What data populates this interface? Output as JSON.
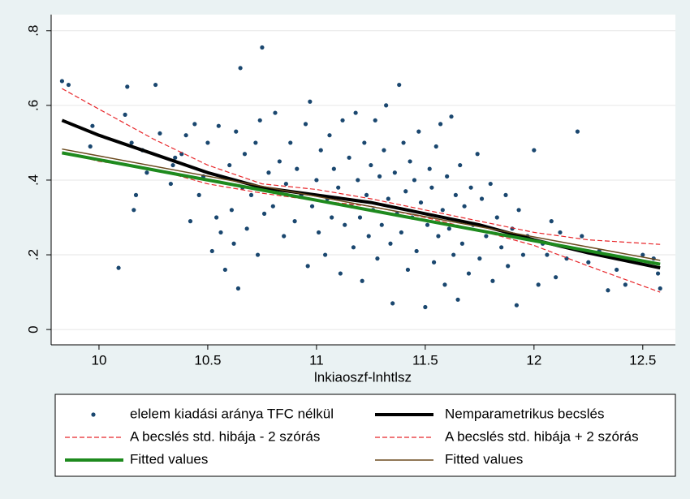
{
  "chart_data": {
    "type": "scatter",
    "x_label": "lnkiaoszf-lnhtlsz",
    "xlim": [
      9.78,
      12.65
    ],
    "xticks": [
      10,
      10.5,
      11,
      11.5,
      12,
      12.5
    ],
    "ylim": [
      -0.041,
      0.843
    ],
    "yticks": [
      0,
      {
        "value": 0.2,
        "label": ".2"
      },
      {
        "value": 0.4,
        "label": ".4"
      },
      {
        "value": 0.6,
        "label": ".6"
      },
      {
        "value": 0.8,
        "label": ".8"
      }
    ],
    "grid": true,
    "series": [
      {
        "name": "elelem kiadási aránya TFC nélkül",
        "kind": "scatter",
        "color": "#1a476f",
        "x": [
          9.83,
          9.86,
          9.96,
          9.97,
          10.09,
          10.12,
          10.13,
          10.15,
          10.16,
          10.17,
          10.26,
          10.22,
          10.2,
          10.28,
          10.33,
          10.34,
          10.35,
          10.38,
          10.4,
          10.42,
          10.44,
          10.46,
          10.48,
          10.5,
          10.52,
          10.54,
          10.55,
          10.56,
          10.58,
          10.6,
          10.61,
          10.62,
          10.63,
          10.64,
          10.65,
          10.66,
          10.67,
          10.68,
          10.7,
          10.72,
          10.73,
          10.74,
          10.75,
          10.76,
          10.78,
          10.8,
          10.81,
          10.83,
          10.85,
          10.86,
          10.88,
          10.9,
          10.91,
          10.93,
          10.95,
          10.96,
          10.97,
          10.98,
          11.0,
          11.01,
          11.02,
          11.04,
          11.05,
          11.06,
          11.07,
          11.08,
          11.1,
          11.11,
          11.12,
          11.13,
          11.15,
          11.16,
          11.17,
          11.18,
          11.19,
          11.2,
          11.21,
          11.22,
          11.23,
          11.24,
          11.25,
          11.26,
          11.27,
          11.28,
          11.29,
          11.3,
          11.31,
          11.32,
          11.33,
          11.34,
          11.35,
          11.36,
          11.37,
          11.38,
          11.39,
          11.4,
          11.41,
          11.42,
          11.43,
          11.44,
          11.45,
          11.46,
          11.47,
          11.48,
          11.5,
          11.51,
          11.52,
          11.53,
          11.54,
          11.55,
          11.56,
          11.57,
          11.58,
          11.59,
          11.6,
          11.61,
          11.62,
          11.63,
          11.64,
          11.65,
          11.66,
          11.67,
          11.68,
          11.7,
          11.71,
          11.72,
          11.74,
          11.75,
          11.76,
          11.78,
          11.8,
          11.81,
          11.83,
          11.85,
          11.87,
          11.88,
          11.9,
          11.92,
          11.93,
          11.95,
          11.97,
          12.0,
          12.02,
          12.04,
          12.06,
          12.08,
          12.1,
          12.12,
          12.15,
          12.2,
          12.22,
          12.25,
          12.3,
          12.34,
          12.38,
          12.42,
          12.5,
          12.55,
          12.58,
          12.57
        ],
        "values": [
          0.665,
          0.655,
          0.49,
          0.545,
          0.165,
          0.575,
          0.65,
          0.5,
          0.32,
          0.36,
          0.655,
          0.42,
          0.48,
          0.525,
          0.39,
          0.44,
          0.46,
          0.47,
          0.52,
          0.29,
          0.55,
          0.36,
          0.41,
          0.5,
          0.21,
          0.3,
          0.545,
          0.26,
          0.16,
          0.44,
          0.32,
          0.23,
          0.53,
          0.11,
          0.7,
          0.38,
          0.47,
          0.27,
          0.36,
          0.5,
          0.2,
          0.56,
          0.755,
          0.31,
          0.42,
          0.33,
          0.58,
          0.45,
          0.25,
          0.39,
          0.5,
          0.29,
          0.43,
          0.36,
          0.55,
          0.17,
          0.61,
          0.33,
          0.4,
          0.26,
          0.48,
          0.2,
          0.35,
          0.52,
          0.3,
          0.43,
          0.38,
          0.15,
          0.56,
          0.28,
          0.46,
          0.33,
          0.22,
          0.58,
          0.4,
          0.3,
          0.13,
          0.5,
          0.36,
          0.25,
          0.44,
          0.32,
          0.56,
          0.19,
          0.41,
          0.28,
          0.48,
          0.6,
          0.35,
          0.23,
          0.07,
          0.42,
          0.31,
          0.655,
          0.26,
          0.5,
          0.37,
          0.16,
          0.45,
          0.3,
          0.4,
          0.21,
          0.53,
          0.34,
          0.06,
          0.28,
          0.43,
          0.38,
          0.18,
          0.49,
          0.25,
          0.55,
          0.32,
          0.12,
          0.41,
          0.27,
          0.57,
          0.2,
          0.36,
          0.08,
          0.44,
          0.23,
          0.33,
          0.15,
          0.38,
          0.28,
          0.47,
          0.19,
          0.35,
          0.25,
          0.39,
          0.13,
          0.3,
          0.22,
          0.36,
          0.17,
          0.27,
          0.065,
          0.32,
          0.2,
          0.25,
          0.48,
          0.12,
          0.23,
          0.2,
          0.29,
          0.14,
          0.26,
          0.19,
          0.53,
          0.25,
          0.18,
          0.21,
          0.105,
          0.16,
          0.12,
          0.2,
          0.19,
          0.11,
          0.15
        ]
      },
      {
        "name": "Nemparametrikus becslés",
        "kind": "line",
        "style": "thick",
        "color": "#000000",
        "x": [
          9.83,
          10,
          10.25,
          10.5,
          10.75,
          11,
          11.25,
          11.5,
          11.75,
          12,
          12.25,
          12.58
        ],
        "values": [
          0.56,
          0.52,
          0.47,
          0.42,
          0.38,
          0.36,
          0.34,
          0.31,
          0.28,
          0.24,
          0.205,
          0.165
        ]
      },
      {
        "name": "A becslés std. hibája - 2 szórás",
        "kind": "line",
        "style": "dashed",
        "color": "#e8262a",
        "x": [
          9.83,
          10,
          10.25,
          10.5,
          10.75,
          11,
          11.25,
          11.5,
          11.75,
          12,
          12.25,
          12.58
        ],
        "values": [
          0.475,
          0.45,
          0.43,
          0.39,
          0.365,
          0.345,
          0.33,
          0.3,
          0.265,
          0.225,
          0.17,
          0.1
        ]
      },
      {
        "name": "A becslés std. hibája + 2 szórás",
        "kind": "line",
        "style": "dashed",
        "color": "#e8262a",
        "x": [
          9.83,
          10,
          10.25,
          10.5,
          10.75,
          11,
          11.25,
          11.5,
          11.75,
          12,
          12.25,
          12.58
        ],
        "values": [
          0.645,
          0.59,
          0.51,
          0.44,
          0.39,
          0.375,
          0.35,
          0.32,
          0.29,
          0.26,
          0.24,
          0.228
        ]
      },
      {
        "name": "Fitted values",
        "kind": "line",
        "style": "thick",
        "color": "#1e8a1e",
        "x": [
          9.83,
          12.58
        ],
        "values": [
          0.473,
          0.175
        ]
      },
      {
        "name": "Fitted values",
        "kind": "line",
        "style": "thin",
        "color": "#6b4a1f",
        "x": [
          9.83,
          12.58
        ],
        "values": [
          0.483,
          0.185
        ]
      }
    ]
  }
}
